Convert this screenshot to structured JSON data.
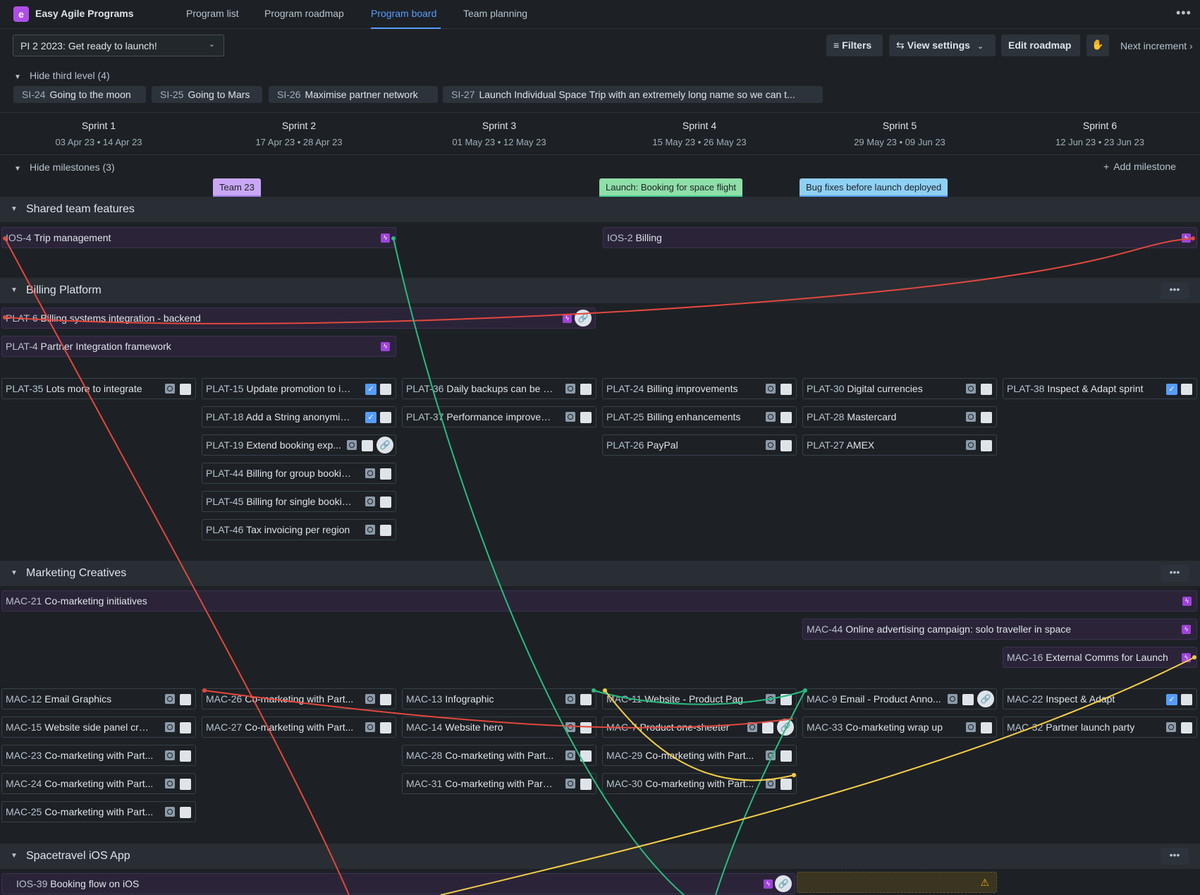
{
  "app": {
    "name": "Easy Agile Programs",
    "logo_letter": "e"
  },
  "nav": {
    "tabs": [
      "Program list",
      "Program roadmap",
      "Program board",
      "Team planning"
    ],
    "active": "Program board"
  },
  "toolbar": {
    "pi_select": "PI 2 2023: Get ready to launch!",
    "filters": "Filters",
    "view_settings": "View settings",
    "edit_roadmap": "Edit roadmap",
    "next_increment": "Next increment"
  },
  "third_level": {
    "toggle": "Hide third level (4)",
    "items": [
      {
        "key": "SI-24",
        "name": "Going to the moon"
      },
      {
        "key": "SI-25",
        "name": "Going to Mars"
      },
      {
        "key": "SI-26",
        "name": "Maximise partner network"
      },
      {
        "key": "SI-27",
        "name": "Launch Individual Space Trip with an extremely long name so we can t..."
      }
    ]
  },
  "sprints": [
    {
      "name": "Sprint 1",
      "dates": "03 Apr 23 • 14 Apr 23"
    },
    {
      "name": "Sprint 2",
      "dates": "17 Apr 23 • 28 Apr 23"
    },
    {
      "name": "Sprint 3",
      "dates": "01 May 23 • 12 May 23"
    },
    {
      "name": "Sprint 4",
      "dates": "15 May 23 • 26 May 23"
    },
    {
      "name": "Sprint 5",
      "dates": "29 May 23 • 09 Jun 23"
    },
    {
      "name": "Sprint 6",
      "dates": "12 Jun 23 • 23 Jun 23"
    }
  ],
  "milestones": {
    "toggle": "Hide milestones (3)",
    "add": "Add milestone",
    "items": [
      {
        "name": "Team 23",
        "color": "#c9a7f5"
      },
      {
        "name": "Launch: Booking for space flight",
        "color": "#8fdfa8"
      },
      {
        "name": "Bug fixes before launch deployed",
        "color": "#8fd0f5"
      }
    ]
  },
  "teams": [
    {
      "name": "Shared team features"
    },
    {
      "name": "Billing Platform"
    },
    {
      "name": "Marketing Creatives"
    },
    {
      "name": "Spacetravel iOS App"
    }
  ],
  "features": [
    {
      "key": "IOS-4",
      "name": "Trip management"
    },
    {
      "key": "IOS-2",
      "name": "Billing"
    },
    {
      "key": "PLAT-6",
      "name": "Billing systems integration - backend"
    },
    {
      "key": "PLAT-4",
      "name": "Partner Integration framework"
    },
    {
      "key": "MAC-21",
      "name": "Co-marketing initiatives"
    },
    {
      "key": "MAC-44",
      "name": "Online advertising campaign: solo traveller in space"
    },
    {
      "key": "MAC-16",
      "name": "External Comms for Launch"
    },
    {
      "key": "IOS-39",
      "name": "Booking flow on iOS"
    }
  ],
  "issues": [
    {
      "key": "PLAT-35",
      "name": "Lots more to integrate"
    },
    {
      "key": "PLAT-15",
      "name": "Update promotion to inc..."
    },
    {
      "key": "PLAT-18",
      "name": "Add a String anonymize..."
    },
    {
      "key": "PLAT-19",
      "name": "Extend booking exp..."
    },
    {
      "key": "PLAT-44",
      "name": "Billing for group bookings"
    },
    {
      "key": "PLAT-45",
      "name": "Billing for single bookings"
    },
    {
      "key": "PLAT-46",
      "name": "Tax invoicing per region"
    },
    {
      "key": "PLAT-36",
      "name": "Daily backups can be p..."
    },
    {
      "key": "PLAT-37",
      "name": "Performance improvem..."
    },
    {
      "key": "PLAT-24",
      "name": "Billing improvements"
    },
    {
      "key": "PLAT-25",
      "name": "Billing enhancements"
    },
    {
      "key": "PLAT-26",
      "name": "PayPal"
    },
    {
      "key": "PLAT-30",
      "name": "Digital currencies"
    },
    {
      "key": "PLAT-28",
      "name": "Mastercard"
    },
    {
      "key": "PLAT-27",
      "name": "AMEX"
    },
    {
      "key": "PLAT-38",
      "name": "Inspect & Adapt sprint"
    },
    {
      "key": "MAC-12",
      "name": "Email Graphics"
    },
    {
      "key": "MAC-15",
      "name": "Website side panel cros..."
    },
    {
      "key": "MAC-23",
      "name": "Co-marketing with Part..."
    },
    {
      "key": "MAC-24",
      "name": "Co-marketing with Part..."
    },
    {
      "key": "MAC-25",
      "name": "Co-marketing with Part..."
    },
    {
      "key": "MAC-26",
      "name": "Co-marketing with Part..."
    },
    {
      "key": "MAC-27",
      "name": "Co-marketing with Part..."
    },
    {
      "key": "MAC-13",
      "name": "Infographic"
    },
    {
      "key": "MAC-14",
      "name": "Website hero"
    },
    {
      "key": "MAC-28",
      "name": "Co-marketing with Part..."
    },
    {
      "key": "MAC-31",
      "name": "Co-marketing with Partn..."
    },
    {
      "key": "MAC-11",
      "name": "Website - Product Page ..."
    },
    {
      "key": "MAC-7",
      "name": "Product one-sheeter"
    },
    {
      "key": "MAC-29",
      "name": "Co-marketing with Part..."
    },
    {
      "key": "MAC-30",
      "name": "Co-marketing with Part..."
    },
    {
      "key": "MAC-9",
      "name": "Email - Product Anno..."
    },
    {
      "key": "MAC-33",
      "name": "Co-marketing wrap up"
    },
    {
      "key": "MAC-22",
      "name": "Inspect & Adapt"
    },
    {
      "key": "MAC-32",
      "name": "Partner launch party"
    }
  ],
  "dependency_colors": {
    "blocked": "#e2483d",
    "healthy": "#2abb7f",
    "warning": "#f5cd47"
  }
}
